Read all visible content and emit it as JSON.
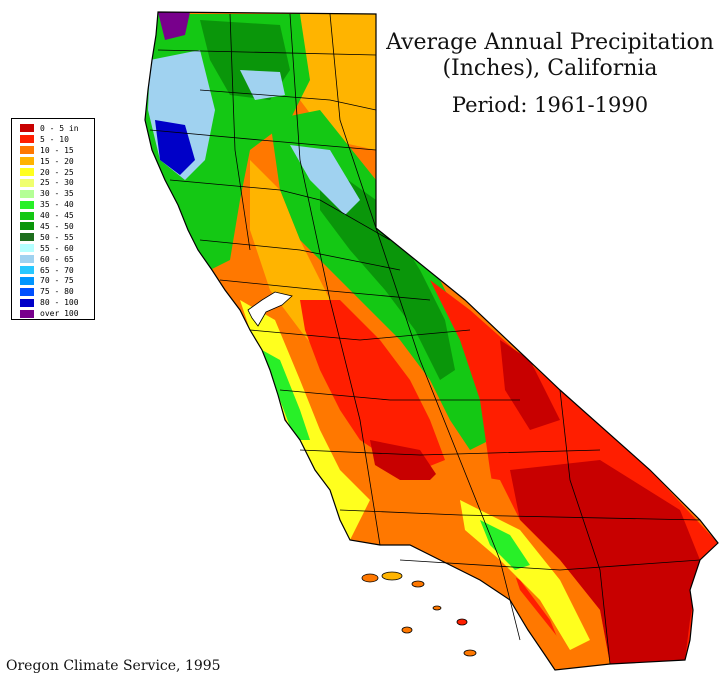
{
  "map": {
    "title_line1": "Average Annual Precipitation",
    "title_line2": "(Inches), California",
    "period": "Period: 1961-1990",
    "credit": "Oregon Climate Service, 1995"
  },
  "legend": {
    "items": [
      {
        "label": "0 - 5 in",
        "color": "#c80000"
      },
      {
        "label": "5 - 10",
        "color": "#ff1e00"
      },
      {
        "label": "10 - 15",
        "color": "#ff7800"
      },
      {
        "label": "15 - 20",
        "color": "#ffb400"
      },
      {
        "label": "20 - 25",
        "color": "#ffff1e"
      },
      {
        "label": "25 - 30",
        "color": "#f0ff6e"
      },
      {
        "label": "30 - 35",
        "color": "#b4ff96"
      },
      {
        "label": "35 - 40",
        "color": "#28f028"
      },
      {
        "label": "40 - 45",
        "color": "#14c814"
      },
      {
        "label": "45 - 50",
        "color": "#0a960a"
      },
      {
        "label": "50 - 55",
        "color": "#1e6e1e"
      },
      {
        "label": "55 - 60",
        "color": "#b4ffff"
      },
      {
        "label": "60 - 65",
        "color": "#a0d2f0"
      },
      {
        "label": "65 - 70",
        "color": "#28c8ff"
      },
      {
        "label": "70 - 75",
        "color": "#0096ff"
      },
      {
        "label": "75 - 80",
        "color": "#0050ff"
      },
      {
        "label": "80 - 100",
        "color": "#0000c8"
      },
      {
        "label": "over 100",
        "color": "#78008c"
      }
    ]
  },
  "colors": {
    "desert": "#c80000",
    "dry": "#ff1e00",
    "semi_dry": "#ff7800",
    "moderate": "#ffb400",
    "yellow": "#ffff1e",
    "green": "#14c814",
    "dark_green": "#1e6e1e",
    "wet_blue": "#a0d2f0",
    "very_wet": "#0000c8",
    "extreme": "#78008c",
    "outline": "#000000"
  }
}
